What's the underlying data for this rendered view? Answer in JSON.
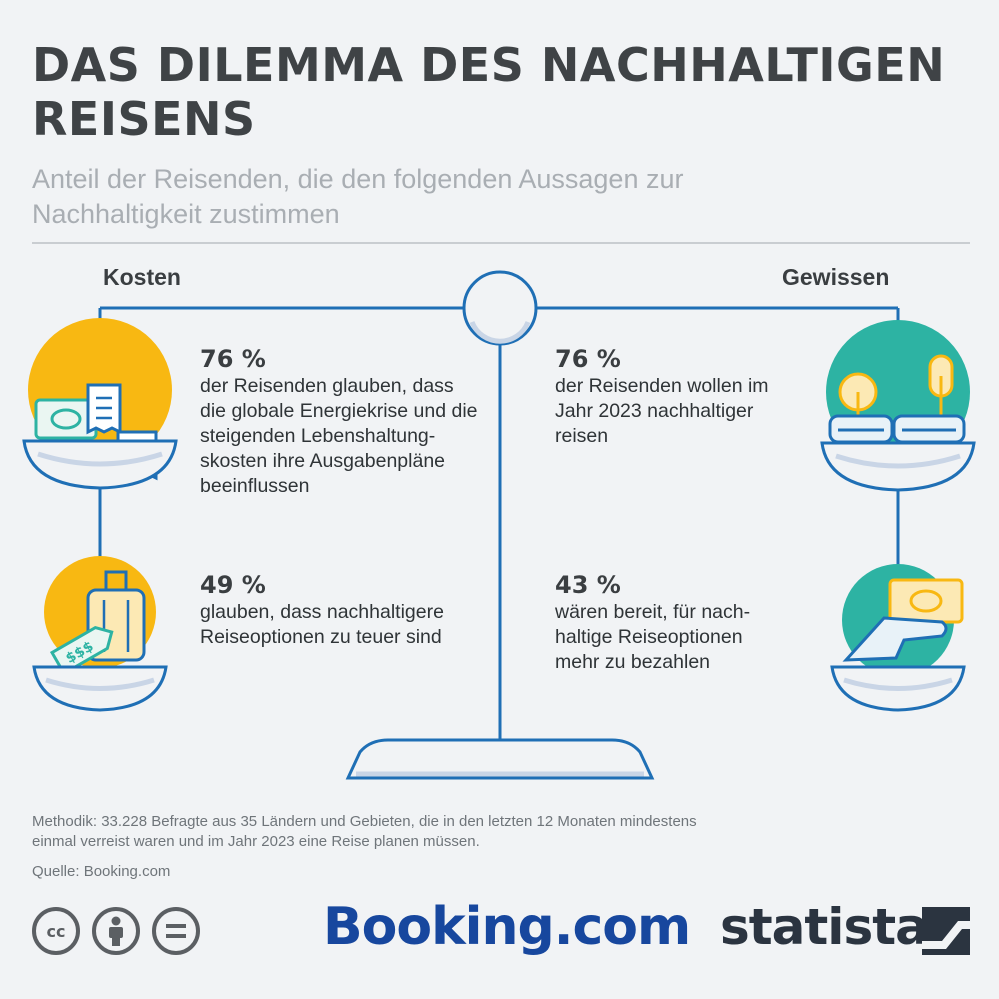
{
  "header": {
    "title": "DAS DILEMMA DES NACHHALTIGEN REISENS",
    "subtitle": "Anteil der Reisenden, die den folgenden Aussagen zur Nachhaltigkeit zustimmen"
  },
  "left": {
    "label": "Kosten",
    "stats": [
      {
        "pct": "76 %",
        "text": "der Reisenden glauben, dass die globale Energiekrise und die steigenden Lebenshaltung-skosten ihre Ausgabenpläne beeinflussen",
        "icon": "money-receipt-icon"
      },
      {
        "pct": "49 %",
        "text": "glauben, dass nachhaltigere Reiseoptionen zu teuer sind",
        "icon": "suitcase-price-tag-icon",
        "tag": "$$$"
      }
    ]
  },
  "right": {
    "label": "Gewissen",
    "stats": [
      {
        "pct": "76 %",
        "text": "der Reisenden wollen im Jahr 2023 nachhaltiger reisen",
        "icon": "train-trees-icon"
      },
      {
        "pct": "43 %",
        "text": "wären bereit, für nach-haltige Reiseoptionen mehr zu bezahlen",
        "icon": "hand-money-icon"
      }
    ]
  },
  "coin_symbol": "€",
  "footer": {
    "method": "Methodik: 33.228 Befragte aus 35 Ländern und Gebieten, die in den letzten 12 Monaten mindestens einmal verreist waren und im Jahr 2023 eine Reise planen müssen.",
    "source": "Quelle: Booking.com",
    "license": [
      "cc",
      "by",
      "nd"
    ],
    "partner_logo": "Booking.com",
    "brand_logo": "statista"
  },
  "colors": {
    "scale": "#1f6fb5",
    "yellow": "#f8b812",
    "teal": "#2db3a3",
    "title": "#3f4346"
  }
}
